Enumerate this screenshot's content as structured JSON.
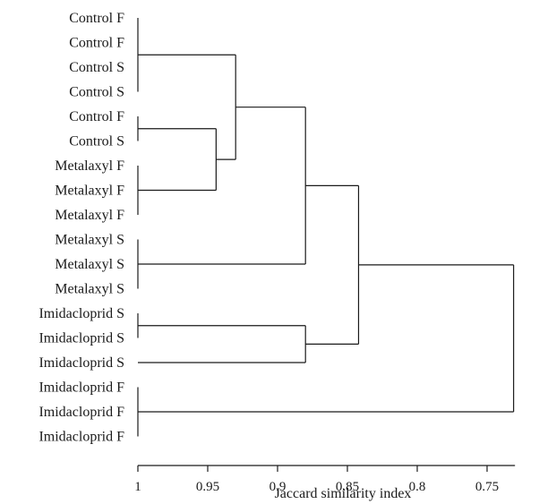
{
  "chart_data": {
    "type": "dendrogram",
    "xlabel": "Jaccard similarity index",
    "x_reversed": true,
    "xlim": [
      1.0,
      0.73
    ],
    "xticks": [
      {
        "value": 1.0,
        "label": "1"
      },
      {
        "value": 0.95,
        "label": "0.95"
      },
      {
        "value": 0.9,
        "label": "0.9"
      },
      {
        "value": 0.85,
        "label": "0.85"
      },
      {
        "value": 0.8,
        "label": "0.8"
      },
      {
        "value": 0.75,
        "label": "0.75"
      }
    ],
    "leaves": [
      "Control F",
      "Control F",
      "Control S",
      "Control S",
      "Control F",
      "Control S",
      "Metalaxyl F",
      "Metalaxyl F",
      "Metalaxyl F",
      "Metalaxyl S",
      "Metalaxyl S",
      "Metalaxyl S",
      "Imidacloprid S",
      "Imidacloprid S",
      "Imidacloprid S",
      "Imidacloprid F",
      "Imidacloprid F",
      "Imidacloprid F"
    ],
    "merges": [
      {
        "id": "A",
        "children": [
          0,
          1,
          2,
          3
        ],
        "similarity": 1.0
      },
      {
        "id": "B",
        "children": [
          4,
          5
        ],
        "similarity": 1.0
      },
      {
        "id": "C",
        "children": [
          6,
          7,
          8
        ],
        "similarity": 1.0
      },
      {
        "id": "D",
        "children": [
          "B",
          "C"
        ],
        "similarity": 0.944
      },
      {
        "id": "E",
        "children": [
          "A",
          "D"
        ],
        "similarity": 0.93
      },
      {
        "id": "F",
        "children": [
          9,
          10,
          11
        ],
        "similarity": 1.0
      },
      {
        "id": "G",
        "children": [
          "E",
          "F"
        ],
        "similarity": 0.88
      },
      {
        "id": "H",
        "children": [
          12,
          13
        ],
        "similarity": 1.0
      },
      {
        "id": "I",
        "children": [
          "H",
          14
        ],
        "similarity": 0.88
      },
      {
        "id": "J",
        "children": [
          "G",
          "I"
        ],
        "similarity": 0.842
      },
      {
        "id": "K",
        "children": [
          15,
          16,
          17
        ],
        "similarity": 1.0
      },
      {
        "id": "L",
        "children": [
          "J",
          "K"
        ],
        "similarity": 0.731
      }
    ]
  }
}
